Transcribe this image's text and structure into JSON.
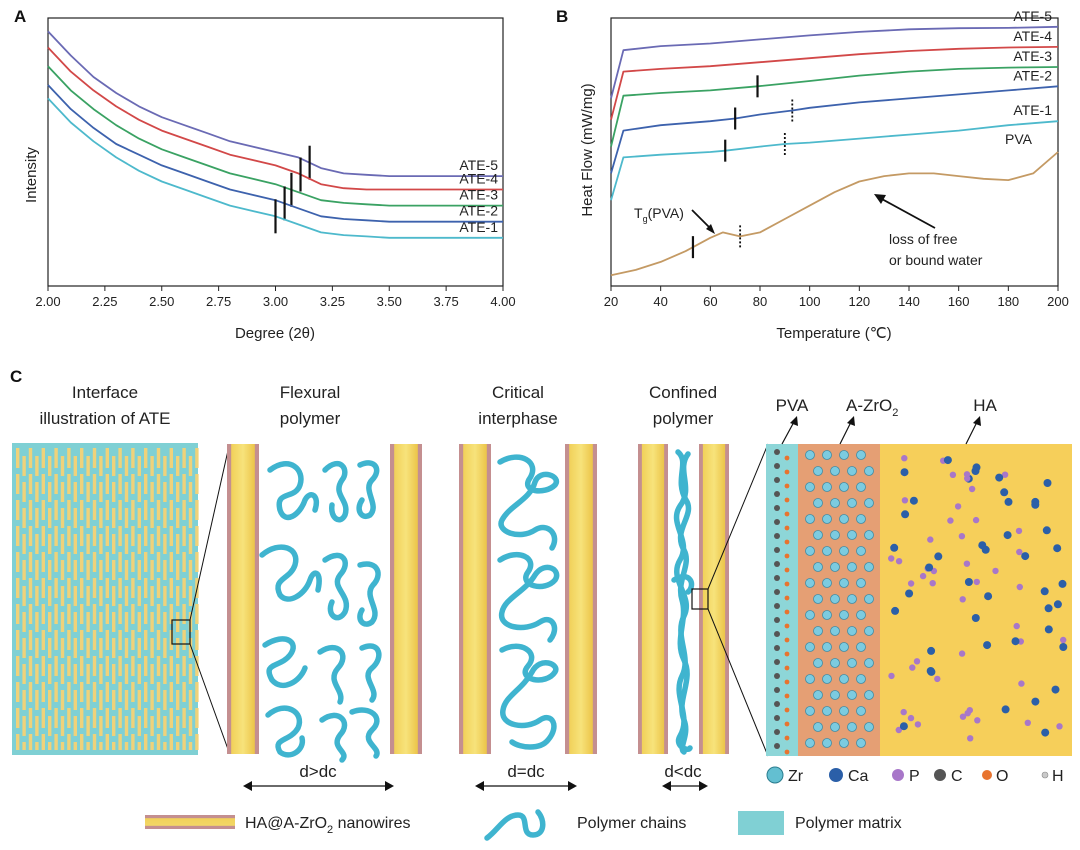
{
  "chart_data": [
    {
      "panel_label": "A",
      "type": "line",
      "xlabel": "Degree (2θ)",
      "ylabel": "Intensity",
      "xlim": [
        2.0,
        4.0
      ],
      "xticks": [
        "2.00",
        "2.25",
        "2.50",
        "2.75",
        "3.00",
        "3.25",
        "3.50",
        "3.75",
        "4.00"
      ],
      "series": [
        {
          "name": "ATE-5",
          "color": "#6a6ab4",
          "marker_x": 3.15,
          "x": [
            2.0,
            2.1,
            2.2,
            2.3,
            2.4,
            2.5,
            2.6,
            2.7,
            2.8,
            2.9,
            3.0,
            3.1,
            3.2,
            3.3,
            3.4,
            3.5,
            3.6,
            3.7,
            3.8,
            3.9,
            4.0
          ],
          "y": [
            0.95,
            0.86,
            0.78,
            0.72,
            0.67,
            0.63,
            0.6,
            0.57,
            0.54,
            0.52,
            0.5,
            0.48,
            0.44,
            0.42,
            0.415,
            0.41,
            0.41,
            0.41,
            0.41,
            0.41,
            0.41
          ]
        },
        {
          "name": "ATE-4",
          "color": "#d24848",
          "marker_x": 3.11,
          "x": [
            2.0,
            2.1,
            2.2,
            2.3,
            2.4,
            2.5,
            2.6,
            2.7,
            2.8,
            2.9,
            3.0,
            3.1,
            3.2,
            3.3,
            3.4,
            3.5,
            3.6,
            3.7,
            3.8,
            3.9,
            4.0
          ],
          "y": [
            0.89,
            0.8,
            0.73,
            0.67,
            0.62,
            0.58,
            0.55,
            0.52,
            0.49,
            0.47,
            0.45,
            0.42,
            0.38,
            0.365,
            0.36,
            0.36,
            0.36,
            0.36,
            0.36,
            0.36,
            0.36
          ]
        },
        {
          "name": "ATE-3",
          "color": "#3aa263",
          "marker_x": 3.07,
          "x": [
            2.0,
            2.1,
            2.2,
            2.3,
            2.4,
            2.5,
            2.6,
            2.7,
            2.8,
            2.9,
            3.0,
            3.1,
            3.2,
            3.3,
            3.4,
            3.5,
            3.6,
            3.7,
            3.8,
            3.9,
            4.0
          ],
          "y": [
            0.82,
            0.73,
            0.66,
            0.6,
            0.55,
            0.51,
            0.48,
            0.45,
            0.42,
            0.4,
            0.38,
            0.35,
            0.32,
            0.31,
            0.305,
            0.3,
            0.3,
            0.3,
            0.3,
            0.3,
            0.3
          ]
        },
        {
          "name": "ATE-2",
          "color": "#3d62ad",
          "marker_x": 3.04,
          "x": [
            2.0,
            2.1,
            2.2,
            2.3,
            2.4,
            2.5,
            2.6,
            2.7,
            2.8,
            2.9,
            3.0,
            3.1,
            3.2,
            3.3,
            3.4,
            3.5,
            3.6,
            3.7,
            3.8,
            3.9,
            4.0
          ],
          "y": [
            0.75,
            0.66,
            0.59,
            0.53,
            0.49,
            0.45,
            0.42,
            0.39,
            0.36,
            0.34,
            0.32,
            0.29,
            0.26,
            0.25,
            0.245,
            0.24,
            0.24,
            0.24,
            0.24,
            0.24,
            0.24
          ]
        },
        {
          "name": "ATE-1",
          "color": "#4db9cc",
          "marker_x": 3.0,
          "x": [
            2.0,
            2.1,
            2.2,
            2.3,
            2.4,
            2.5,
            2.6,
            2.7,
            2.8,
            2.9,
            3.0,
            3.1,
            3.2,
            3.3,
            3.4,
            3.5,
            3.6,
            3.7,
            3.8,
            3.9,
            4.0
          ],
          "y": [
            0.7,
            0.61,
            0.54,
            0.48,
            0.43,
            0.39,
            0.36,
            0.33,
            0.3,
            0.28,
            0.26,
            0.23,
            0.2,
            0.19,
            0.185,
            0.18,
            0.18,
            0.18,
            0.18,
            0.18,
            0.18
          ]
        }
      ]
    },
    {
      "panel_label": "B",
      "type": "line",
      "xlabel": "Temperature (℃)",
      "ylabel": "Heat Flow (mW/mg)",
      "xlim": [
        20,
        200
      ],
      "xticks": [
        "20",
        "40",
        "60",
        "80",
        "100",
        "120",
        "140",
        "160",
        "180",
        "200"
      ],
      "series": [
        {
          "name": "ATE-5",
          "color": "#6a6ab4",
          "markers": [],
          "dotted_markers": [],
          "x": [
            20,
            25,
            40,
            60,
            80,
            100,
            120,
            140,
            160,
            180,
            200
          ],
          "y": [
            0.7,
            0.88,
            0.895,
            0.905,
            0.92,
            0.935,
            0.948,
            0.958,
            0.962,
            0.963,
            0.967
          ]
        },
        {
          "name": "ATE-4",
          "color": "#d24848",
          "markers": [],
          "dotted_markers": [],
          "x": [
            20,
            25,
            40,
            60,
            80,
            100,
            120,
            140,
            160,
            180,
            200
          ],
          "y": [
            0.62,
            0.8,
            0.81,
            0.82,
            0.835,
            0.85,
            0.865,
            0.877,
            0.885,
            0.89,
            0.892
          ]
        },
        {
          "name": "ATE-3",
          "color": "#3aa263",
          "markers": [
            79
          ],
          "dotted_markers": [],
          "x": [
            20,
            25,
            40,
            60,
            79,
            100,
            120,
            140,
            160,
            180,
            200
          ],
          "y": [
            0.52,
            0.71,
            0.72,
            0.73,
            0.745,
            0.765,
            0.785,
            0.8,
            0.81,
            0.815,
            0.817
          ]
        },
        {
          "name": "ATE-2",
          "color": "#3d62ad",
          "markers": [
            70
          ],
          "dotted_markers": [
            93
          ],
          "x": [
            20,
            25,
            40,
            60,
            70,
            80,
            93,
            100,
            120,
            140,
            160,
            180,
            200
          ],
          "y": [
            0.42,
            0.58,
            0.6,
            0.615,
            0.625,
            0.64,
            0.655,
            0.665,
            0.685,
            0.7,
            0.715,
            0.73,
            0.745
          ]
        },
        {
          "name": "ATE-1",
          "color": "#4db9cc",
          "markers": [
            66
          ],
          "dotted_markers": [
            90
          ],
          "x": [
            20,
            25,
            40,
            60,
            66,
            80,
            90,
            100,
            120,
            140,
            160,
            180,
            200
          ],
          "y": [
            0.32,
            0.48,
            0.49,
            0.5,
            0.505,
            0.52,
            0.53,
            0.535,
            0.55,
            0.565,
            0.58,
            0.6,
            0.615
          ]
        },
        {
          "name": "PVA",
          "color": "#c49a64",
          "markers": [
            53
          ],
          "dotted_markers": [
            72
          ],
          "x": [
            20,
            30,
            40,
            50,
            60,
            65,
            72,
            80,
            90,
            100,
            110,
            120,
            130,
            140,
            150,
            160,
            170,
            180,
            190,
            200
          ],
          "y": [
            0.04,
            0.06,
            0.09,
            0.13,
            0.18,
            0.2,
            0.185,
            0.2,
            0.25,
            0.3,
            0.35,
            0.39,
            0.41,
            0.42,
            0.42,
            0.41,
            0.4,
            0.395,
            0.42,
            0.5
          ]
        }
      ],
      "annotations": {
        "tg_label": "T",
        "tg_sub": "g",
        "tg_paren": "(PVA)",
        "water_line1": "loss of free",
        "water_line2": "or bound water"
      }
    }
  ],
  "panelC": {
    "label": "C",
    "header_interface_1": "Interface",
    "header_interface_2": "illustration of ATE",
    "header_flexural_1": "Flexural",
    "header_flexural_2": "polymer",
    "header_critical_1": "Critical",
    "header_critical_2": "interphase",
    "header_confined_1": "Confined",
    "header_confined_2": "polymer",
    "layer_pva": "PVA",
    "layer_azro2": "A-ZrO",
    "layer_azro2_sub": "2",
    "layer_ha": "HA",
    "dist_flexural": "d>dc",
    "dist_critical": "d=dc",
    "dist_confined": "d<dc",
    "atom_zr": "Zr",
    "atom_ca": "Ca",
    "atom_p": "P",
    "atom_c": "C",
    "atom_o": "O",
    "atom_h": "H",
    "legend_nanowires": "HA@A-ZrO",
    "legend_nanowires_sub": "2",
    "legend_nanowires_tail": " nanowires",
    "legend_chains": "Polymer chains",
    "legend_matrix": "Polymer matrix"
  }
}
